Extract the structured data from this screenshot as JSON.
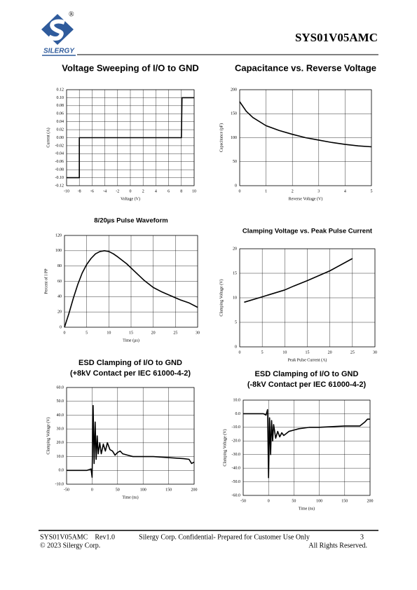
{
  "header": {
    "part": "SYS01V05AMC",
    "logo_text": "SILERGY",
    "registered": "®"
  },
  "footer": {
    "left": "SYS01V05AMC    Rev1.0",
    "center": "Silergy Corp. Confidential- Prepared for Customer Use Only",
    "page": "3",
    "copyright": "© 2023 Silergy Corp.",
    "rights": "All Rights Reserved."
  },
  "chart_data": [
    {
      "type": "line",
      "title": "Voltage Sweeping of I/O to GND",
      "xlabel": "Voltage (V)",
      "ylabel": "Current (A)",
      "color": "#000000",
      "grid": true,
      "x": [
        -10,
        -8,
        -8,
        8,
        8.1,
        10
      ],
      "values": [
        -0.1,
        -0.1,
        0,
        0,
        0.1,
        0.1
      ],
      "xlim": [
        -10,
        10
      ],
      "ylim": [
        -0.12,
        0.12
      ],
      "xticks": [
        -10,
        -8,
        -6,
        -4,
        -2,
        0,
        2,
        4,
        6,
        8,
        10
      ],
      "yticks": [
        {
          "value": -0.12,
          "label": "-0.12"
        },
        {
          "value": -0.1,
          "label": "-0.10"
        },
        {
          "value": -0.08,
          "label": "-0.08"
        },
        {
          "value": -0.06,
          "label": "-0.06"
        },
        {
          "value": -0.04,
          "label": "-0.04"
        },
        {
          "value": -0.02,
          "label": "-0.02"
        },
        {
          "value": 0,
          "label": "0.00"
        },
        {
          "value": 0.02,
          "label": "0.02"
        },
        {
          "value": 0.04,
          "label": "0.04"
        },
        {
          "value": 0.06,
          "label": "0.06"
        },
        {
          "value": 0.08,
          "label": "0.08"
        },
        {
          "value": 0.1,
          "label": "0.10"
        },
        {
          "value": 0.12,
          "label": "0.12"
        }
      ]
    },
    {
      "type": "line",
      "title": "Capacitance vs. Reverse Voltage",
      "xlabel": "Reverse Voltage (V)",
      "ylabel": "Capacitance (pF)",
      "color": "#000000",
      "grid": true,
      "x": [
        0,
        0.25,
        0.5,
        1,
        1.5,
        2,
        2.5,
        3,
        3.5,
        4,
        4.5,
        5
      ],
      "values": [
        175,
        155,
        142,
        125,
        115,
        107,
        100,
        95,
        90,
        86,
        83,
        81
      ],
      "xlim": [
        0,
        5
      ],
      "ylim": [
        0,
        200
      ],
      "xticks": [
        0,
        1,
        2,
        3,
        4,
        5
      ],
      "yticks": [
        0,
        50,
        100,
        150,
        200
      ]
    },
    {
      "type": "line",
      "title": "8/20µs Pulse Waveform",
      "xlabel": "Time (µs)",
      "ylabel": "Percent of I PP",
      "color": "#000000",
      "grid": true,
      "x": [
        0,
        1,
        2,
        3,
        4,
        5,
        6,
        7,
        8,
        9,
        10,
        11,
        12,
        14,
        16,
        18,
        20,
        22,
        24,
        26,
        28,
        30
      ],
      "values": [
        0,
        18,
        38,
        56,
        71,
        82,
        90,
        96,
        99,
        100,
        99,
        96,
        92,
        83,
        72,
        61,
        52,
        46,
        41,
        36,
        32,
        26
      ],
      "xlim": [
        0,
        30
      ],
      "ylim": [
        0,
        120
      ],
      "xticks": [
        0,
        5,
        10,
        15,
        20,
        25,
        30
      ],
      "yticks": [
        0,
        20,
        40,
        60,
        80,
        100,
        120
      ]
    },
    {
      "type": "line",
      "title": "Clamping Voltage vs. Peak Pulse Current",
      "xlabel": "Peak Pulse Current (A)",
      "ylabel": "Clamping Voltage (V)",
      "color": "#000000",
      "grid": true,
      "x": [
        1,
        5,
        10,
        12,
        15,
        20,
        25
      ],
      "values": [
        9.1,
        10.2,
        11.6,
        12.4,
        13.5,
        15.5,
        18
      ],
      "xlim": [
        0,
        30
      ],
      "ylim": [
        0,
        20
      ],
      "xticks": [
        0,
        5,
        10,
        15,
        20,
        25,
        30
      ],
      "yticks": [
        0,
        5,
        10,
        15,
        20
      ]
    },
    {
      "type": "line",
      "title": "ESD Clamping of I/O to GND",
      "subtitle": "(+8kV Contact per IEC 61000-4-2)",
      "xlabel": "Time (ns)",
      "ylabel": "Clamping Voltage (V)",
      "color": "#000000",
      "grid": true,
      "x": [
        -50,
        -10,
        -2,
        0,
        2,
        4,
        6,
        8,
        10,
        12,
        15,
        18,
        22,
        26,
        30,
        35,
        40,
        45,
        50,
        55,
        60,
        70,
        80,
        100,
        120,
        140,
        160,
        180,
        190,
        195,
        200
      ],
      "values": [
        0,
        0,
        1,
        -5,
        47,
        5,
        35,
        8,
        25,
        12,
        20,
        12,
        19,
        14,
        20,
        15,
        14,
        11,
        13,
        14,
        12,
        11,
        10,
        10,
        10,
        9.5,
        9,
        8.5,
        8,
        5,
        6
      ],
      "xlim": [
        -50,
        200
      ],
      "ylim": [
        -10,
        60
      ],
      "xticks": [
        -50,
        0,
        50,
        100,
        150,
        200
      ],
      "yticks": [
        {
          "value": -10,
          "label": "-10.0"
        },
        {
          "value": 0,
          "label": "0.0"
        },
        {
          "value": 10,
          "label": "10.0"
        },
        {
          "value": 20,
          "label": "20.0"
        },
        {
          "value": 30,
          "label": "30.0"
        },
        {
          "value": 40,
          "label": "40.0"
        },
        {
          "value": 50,
          "label": "50.0"
        },
        {
          "value": 60,
          "label": "60.0"
        }
      ]
    },
    {
      "type": "line",
      "title": "ESD Clamping of I/O to GND",
      "subtitle": "(-8kV Contact per IEC 61000-4-2)",
      "xlabel": "Time (ns)",
      "ylabel": "Clamping Voltage (V)",
      "color": "#000000",
      "grid": true,
      "x": [
        -50,
        -10,
        -5,
        -2,
        0,
        2,
        4,
        6,
        8,
        10,
        14,
        18,
        22,
        26,
        30,
        40,
        50,
        60,
        80,
        100,
        150,
        180,
        190,
        195,
        200
      ],
      "values": [
        0,
        0,
        -1,
        3,
        -47,
        -3,
        -30,
        -5,
        -20,
        -8,
        -18,
        -13,
        -17,
        -14,
        -16,
        -13,
        -12,
        -11,
        -10,
        -10,
        -9,
        -9,
        -6,
        -4,
        -4
      ],
      "xlim": [
        -50,
        200
      ],
      "ylim": [
        -60,
        10
      ],
      "xticks": [
        -50,
        0,
        50,
        100,
        150,
        200
      ],
      "yticks": [
        {
          "value": -60,
          "label": "-60.0"
        },
        {
          "value": -50,
          "label": "-50.0"
        },
        {
          "value": -40,
          "label": "-40.0"
        },
        {
          "value": -30,
          "label": "-30.0"
        },
        {
          "value": -20,
          "label": "-20.0"
        },
        {
          "value": -10,
          "label": "-10.0"
        },
        {
          "value": 0,
          "label": "0.0"
        },
        {
          "value": 10,
          "label": "10.0"
        }
      ]
    }
  ]
}
